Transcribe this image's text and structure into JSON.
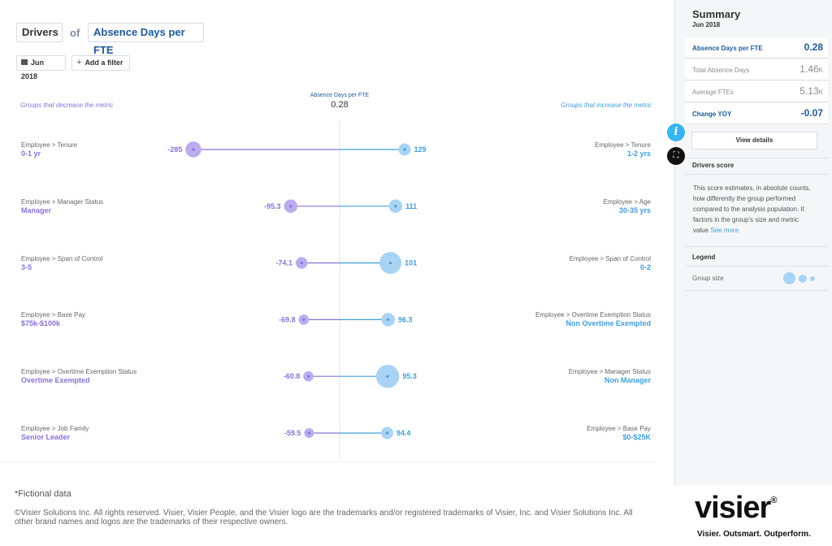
{
  "header": {
    "drivers_label": "Drivers",
    "of_label": "of",
    "metric_label": "Absence Days per FTE",
    "date_filter": "Jun 2018",
    "add_filter": "Add a filter"
  },
  "chart": {
    "decrease_title": "Groups that decrease the metric",
    "increase_title": "Groups that increase the metric",
    "axis_label": "Absence Days per FTE",
    "axis_value": "0.28",
    "colors": {
      "decrease": "#8a72d8",
      "increase": "#3f9fd8",
      "bubble_decrease": "#b9adee",
      "bubble_increase": "#a9d3f5"
    }
  },
  "chart_data": {
    "type": "scatter",
    "rows": [
      {
        "left_category": "Employee > Tenure",
        "left_group": "0-1 yr",
        "left_value": -285,
        "left_label": "-285",
        "left_size": 0.45,
        "right_category": "Employee > Tenure",
        "right_group": "1-2 yrs",
        "right_value": 129,
        "right_label": "129",
        "right_size": 0.3
      },
      {
        "left_category": "Employee > Manager Status",
        "left_group": "Manager",
        "left_value": -95.3,
        "left_label": "-95.3",
        "left_size": 0.35,
        "right_category": "Employee > Age",
        "right_group": "30-35 yrs",
        "right_value": 111,
        "right_label": "111",
        "right_size": 0.35
      },
      {
        "left_category": "Employee > Span of Control",
        "left_group": "3-5",
        "left_value": -74.1,
        "left_label": "-74.1",
        "left_size": 0.28,
        "right_category": "Employee > Span of Control",
        "right_group": "0-2",
        "right_value": 101,
        "right_label": "101",
        "right_size": 0.7
      },
      {
        "left_category": "Employee > Base Pay",
        "left_group": "$75k-$100k",
        "left_value": -69.8,
        "left_label": "-69.8",
        "left_size": 0.22,
        "right_category": "Employee > Overtime Exemption Status",
        "right_group": "Non Overtime Exempted",
        "right_value": 96.3,
        "right_label": "96.3",
        "right_size": 0.35
      },
      {
        "left_category": "Employee > Overtime Exemption Status",
        "left_group": "Overtime Exempted",
        "left_value": -60.8,
        "left_label": "-60.8",
        "left_size": 0.22,
        "right_category": "Employee > Manager Status",
        "right_group": "Non Manager",
        "right_value": 95.3,
        "right_label": "95.3",
        "right_size": 0.75
      },
      {
        "left_category": "Employee > Job Family",
        "left_group": "Senior Leader",
        "left_value": -59.5,
        "left_label": "-59.5",
        "left_size": 0.2,
        "right_category": "Employee > Base Pay",
        "right_group": "$0-$25K",
        "right_value": 94.4,
        "right_label": "94.4",
        "right_size": 0.3
      }
    ]
  },
  "summary": {
    "title": "Summary",
    "date": "Jun 2018",
    "rows": [
      {
        "label": "Absence Days per FTE",
        "value": "0.28",
        "unit": ""
      },
      {
        "label": "Total Absence Days",
        "value": "1.46",
        "unit": "K"
      },
      {
        "label": "Average FTEs",
        "value": "5.13",
        "unit": "K"
      },
      {
        "label": "Change YOY",
        "value": "-0.07",
        "unit": ""
      }
    ],
    "view_details": "View details",
    "drivers_score_title": "Drivers score",
    "drivers_score_text": "This score estimates, in absolute counts, how differently the group performed compared to the analysis population. It factors in the group's size and metric value",
    "see_more": "See more",
    "legend_title": "Legend",
    "group_size_label": "Group size"
  },
  "footer": {
    "fictional": "*Fictional data",
    "copyright": "©Visier Solutions Inc. All rights reserved. Visier, Visier People, and the Visier logo are the trademarks and/or registered trademarks of Visier, Inc. and Visier Solutions Inc. All other brand names and logos are the trademarks of their respective owners.",
    "logo_text": "visier",
    "tagline": "Visier. Outsmart. Outperform."
  },
  "icons": {
    "info": "info-icon",
    "focus": "focus-icon",
    "calendar": "calendar-icon",
    "plus": "plus-icon"
  }
}
